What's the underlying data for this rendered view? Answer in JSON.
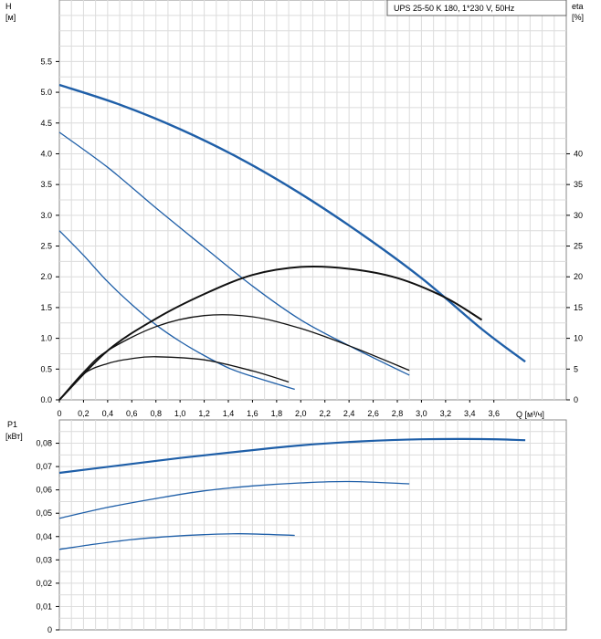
{
  "chart_data": [
    {
      "type": "line",
      "title": "UPS 25-50 K 180, 1*230 V, 50Hz",
      "xlabel": "Q [м³/ч]",
      "ylabel": "H [м]",
      "y2label": "eta [%]",
      "xlim": [
        0,
        4.2
      ],
      "ylim": [
        0,
        6.5
      ],
      "y2lim": [
        0,
        65
      ],
      "grid": true,
      "x_ticks": [
        "0",
        "0,2",
        "0,4",
        "0,6",
        "0,8",
        "1,0",
        "1,2",
        "1,4",
        "1,6",
        "1,8",
        "2,0",
        "2,2",
        "2,4",
        "2,6",
        "2,8",
        "3,0",
        "3,2",
        "3,4",
        "3,6"
      ],
      "y_ticks": [
        "0.0",
        "0.5",
        "1.0",
        "1.5",
        "2.0",
        "2.5",
        "3.0",
        "3.5",
        "4.0",
        "4.5",
        "5.0",
        "5.5"
      ],
      "y2_ticks": [
        "0",
        "5",
        "10",
        "15",
        "20",
        "25",
        "30",
        "35",
        "40"
      ],
      "head_series": [
        {
          "x": [
            0,
            0.5,
            1.0,
            1.5,
            2.0,
            2.5,
            3.0,
            3.5,
            3.86
          ],
          "y": [
            5.12,
            4.8,
            4.4,
            3.92,
            3.35,
            2.7,
            1.98,
            1.15,
            0.62
          ]
        },
        {
          "x": [
            0,
            0.4,
            0.8,
            1.2,
            1.6,
            2.0,
            2.4,
            2.9
          ],
          "y": [
            4.35,
            3.78,
            3.12,
            2.48,
            1.85,
            1.3,
            0.88,
            0.4
          ]
        },
        {
          "x": [
            0,
            0.2,
            0.4,
            0.6,
            0.8,
            1.0,
            1.2,
            1.4,
            1.6,
            1.95
          ],
          "y": [
            2.75,
            2.35,
            1.92,
            1.55,
            1.22,
            0.95,
            0.72,
            0.52,
            0.38,
            0.17
          ]
        }
      ],
      "eta_series": [
        {
          "x": [
            0,
            0.4,
            0.8,
            1.2,
            1.6,
            2.0,
            2.4,
            2.8,
            3.2,
            3.5
          ],
          "y": [
            0,
            8,
            13.2,
            17.2,
            20.3,
            21.6,
            21.3,
            19.8,
            16.6,
            13
          ]
        },
        {
          "x": [
            0,
            0.2,
            0.4,
            0.8,
            1.2,
            1.6,
            2.0,
            2.4,
            2.9
          ],
          "y": [
            0,
            4.5,
            8,
            11.9,
            13.7,
            13.5,
            11.6,
            8.8,
            4.8
          ]
        },
        {
          "x": [
            0,
            0.2,
            0.4,
            0.6,
            0.8,
            1.2,
            1.6,
            1.9
          ],
          "y": [
            0,
            4.2,
            5.9,
            6.7,
            7,
            6.5,
            4.7,
            2.9
          ]
        }
      ]
    },
    {
      "type": "line",
      "xlabel": "",
      "ylabel": "P1 [кВт]",
      "xlim": [
        0,
        4.2
      ],
      "ylim": [
        0,
        0.09
      ],
      "grid": true,
      "y_ticks": [
        "0",
        "0,01",
        "0,02",
        "0,03",
        "0,04",
        "0,05",
        "0,06",
        "0,07",
        "0,08"
      ],
      "series": [
        {
          "x": [
            0,
            0.5,
            1.0,
            1.5,
            2.0,
            2.5,
            3.0,
            3.5,
            3.86
          ],
          "y": [
            0.0673,
            0.0705,
            0.0737,
            0.0765,
            0.0791,
            0.0808,
            0.0817,
            0.0818,
            0.0813
          ]
        },
        {
          "x": [
            0,
            0.4,
            0.8,
            1.2,
            1.6,
            2.0,
            2.4,
            2.9
          ],
          "y": [
            0.0478,
            0.0525,
            0.0563,
            0.0596,
            0.0617,
            0.063,
            0.0636,
            0.0626
          ]
        },
        {
          "x": [
            0,
            0.3,
            0.6,
            0.9,
            1.2,
            1.5,
            1.95
          ],
          "y": [
            0.0345,
            0.0368,
            0.0387,
            0.04,
            0.0408,
            0.0412,
            0.0405
          ]
        }
      ]
    }
  ]
}
